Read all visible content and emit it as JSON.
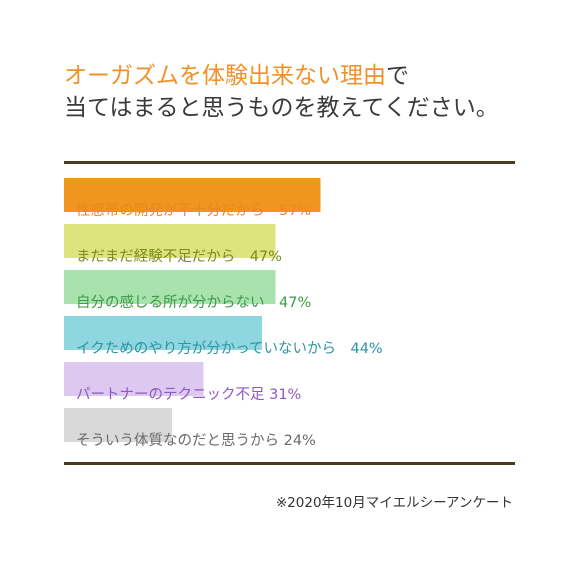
{
  "title": {
    "line1_highlight": "オーガズムを体験出来ない理由",
    "line1_rest": "で",
    "line2": "当てはまると思うものを教えてください。"
  },
  "footnote": "※2020年10月マイエルシーアンケート",
  "colors": {
    "rule": "#4a3a1e",
    "highlight": "#f0922b"
  },
  "chart_data": {
    "type": "bar",
    "orientation": "horizontal",
    "categories": [
      "性感帯の開発が不十分だから",
      "まだまだ経験不足だから",
      "自分の感じる所が分からない",
      "イクためのやり方が分かっていないから",
      "パートナーのテクニック不足",
      "そういう体質なのだと思うから"
    ],
    "values": [
      57,
      47,
      47,
      44,
      31,
      24
    ],
    "unit": "%",
    "bar_colors": [
      "#f0951f",
      "#dde47d",
      "#a8e2ad",
      "#8fd7e0",
      "#ddc8ef",
      "#d9d9d9"
    ],
    "label_colors": [
      "#e8891e",
      "#7d8a1c",
      "#3d9a47",
      "#2e93a3",
      "#8d59c2",
      "#6b6b6b"
    ],
    "label_gaps": [
      "　",
      "　",
      "　",
      "　",
      " ",
      " "
    ]
  }
}
